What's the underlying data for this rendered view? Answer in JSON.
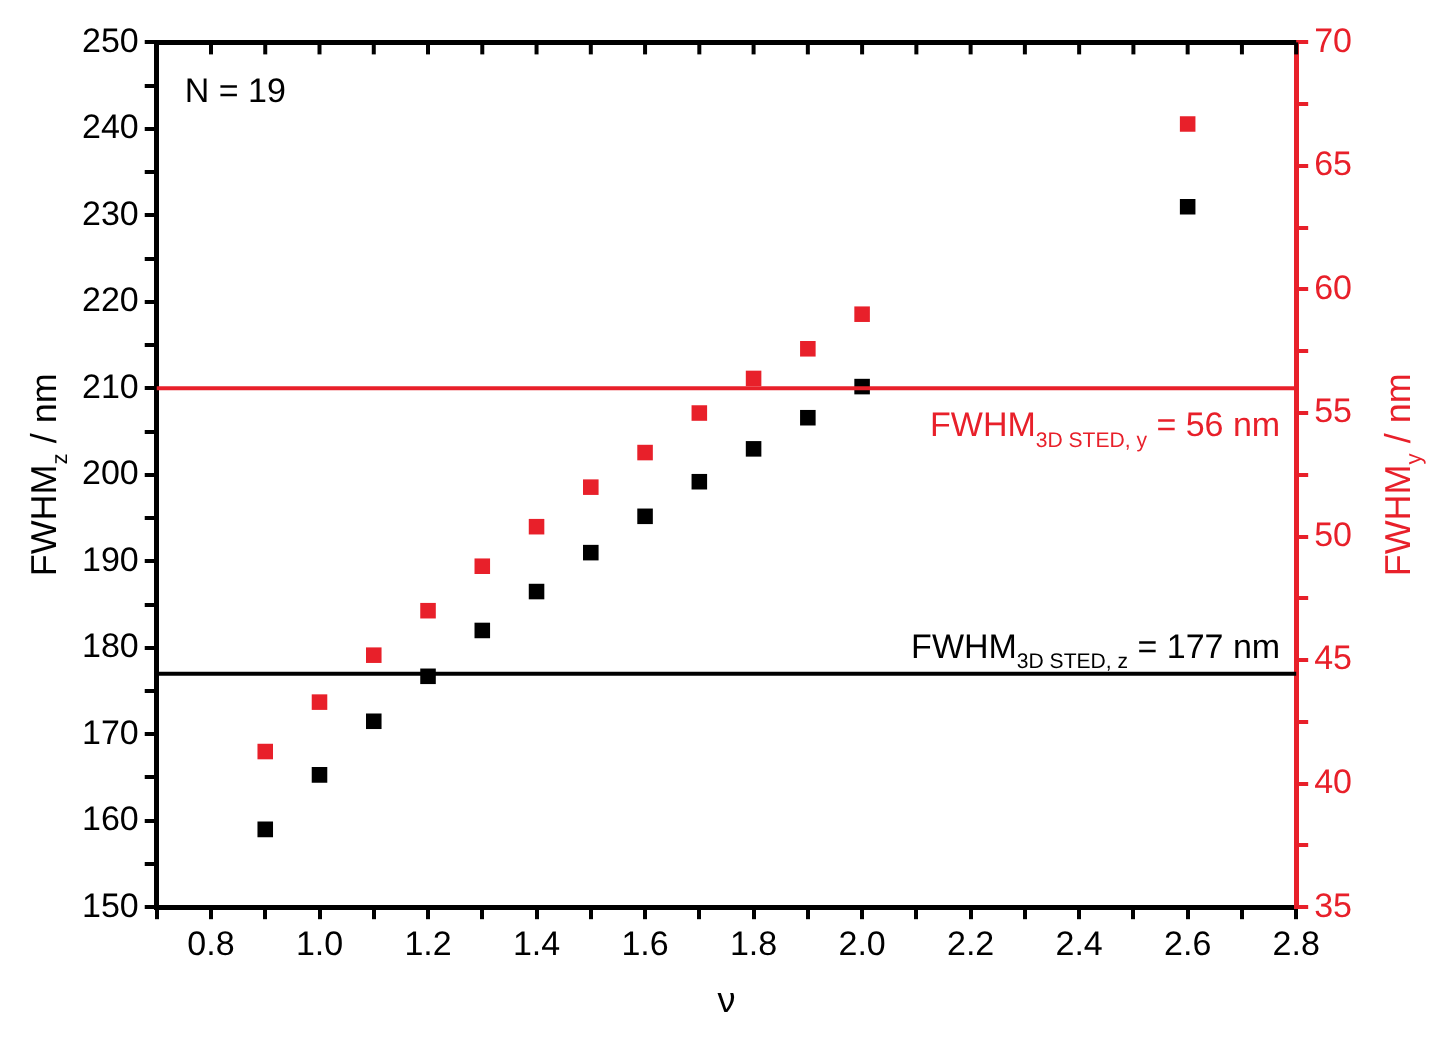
{
  "chart_data": {
    "type": "scatter",
    "xlabel": "ν",
    "ylabel": "FWHM$_{z}$ / nm",
    "y2label": "FWHM$_{y}$ / nm",
    "x": [
      0.9,
      1.0,
      1.1,
      1.2,
      1.3,
      1.4,
      1.5,
      1.6,
      1.7,
      1.8,
      1.9,
      2.0,
      2.6
    ],
    "series": [
      {
        "color": "#000000",
        "values": [
          159,
          165.3,
          171.5,
          176.7,
          182,
          186.5,
          191,
          195.2,
          199.2,
          203,
          206.6,
          210.2,
          231
        ]
      },
      {
        "color": "#e8202a",
        "axis": "y2",
        "values": [
          41.3,
          43.3,
          45.2,
          47.0,
          48.8,
          50.4,
          52.0,
          53.4,
          55.0,
          56.4,
          57.6,
          59.0,
          66.7
        ]
      }
    ],
    "marker": "square",
    "xlim": [
      0.7,
      2.8
    ],
    "xticks": [
      {
        "value": 0.7,
        "label": null
      },
      0.8,
      {
        "value": 0.9,
        "label": null
      },
      {
        "value": 1.0,
        "label": "1.0"
      },
      {
        "value": 1.1,
        "label": null
      },
      1.2,
      {
        "value": 1.3,
        "label": null
      },
      1.4,
      {
        "value": 1.5,
        "label": null
      },
      1.6,
      {
        "value": 1.7,
        "label": null
      },
      1.8,
      {
        "value": 1.9,
        "label": null
      },
      {
        "value": 2.0,
        "label": "2.0"
      },
      {
        "value": 2.1,
        "label": null
      },
      2.2,
      {
        "value": 2.3,
        "label": null
      },
      2.4,
      {
        "value": 2.5,
        "label": null
      },
      2.6,
      {
        "value": 2.7,
        "label": null
      },
      2.8
    ],
    "ylim": [
      150,
      250
    ],
    "yticks": [
      150,
      {
        "value": 155,
        "label": null
      },
      160,
      {
        "value": 165,
        "label": null
      },
      170,
      {
        "value": 175,
        "label": null
      },
      180,
      {
        "value": 185,
        "label": null
      },
      190,
      {
        "value": 195,
        "label": null
      },
      200,
      {
        "value": 205,
        "label": null
      },
      210,
      {
        "value": 215,
        "label": null
      },
      220,
      {
        "value": 225,
        "label": null
      },
      230,
      {
        "value": 235,
        "label": null
      },
      240,
      {
        "value": 245,
        "label": null
      },
      250
    ],
    "y2lim": [
      35,
      70
    ],
    "y2ticks": [
      35,
      {
        "value": 37.5,
        "label": null
      },
      40,
      {
        "value": 42.5,
        "label": null
      },
      45,
      {
        "value": 47.5,
        "label": null
      },
      50,
      {
        "value": 52.5,
        "label": null
      },
      55,
      {
        "value": 57.5,
        "label": null
      },
      60,
      {
        "value": 62.5,
        "label": null
      },
      65,
      {
        "value": 67.5,
        "label": null
      },
      70
    ],
    "ref_lines": [
      {
        "axis": "y",
        "value": 177,
        "label": "FWHM$_{3D STED, z}$ = 177 nm",
        "color": "#000000"
      },
      {
        "axis": "y2",
        "value": 56,
        "label": "FWHM$_{3D STED, y}$ = 56 nm",
        "color": "#e8202a"
      }
    ],
    "annotations": [
      "N = 19"
    ],
    "grid": false,
    "legend": false
  }
}
